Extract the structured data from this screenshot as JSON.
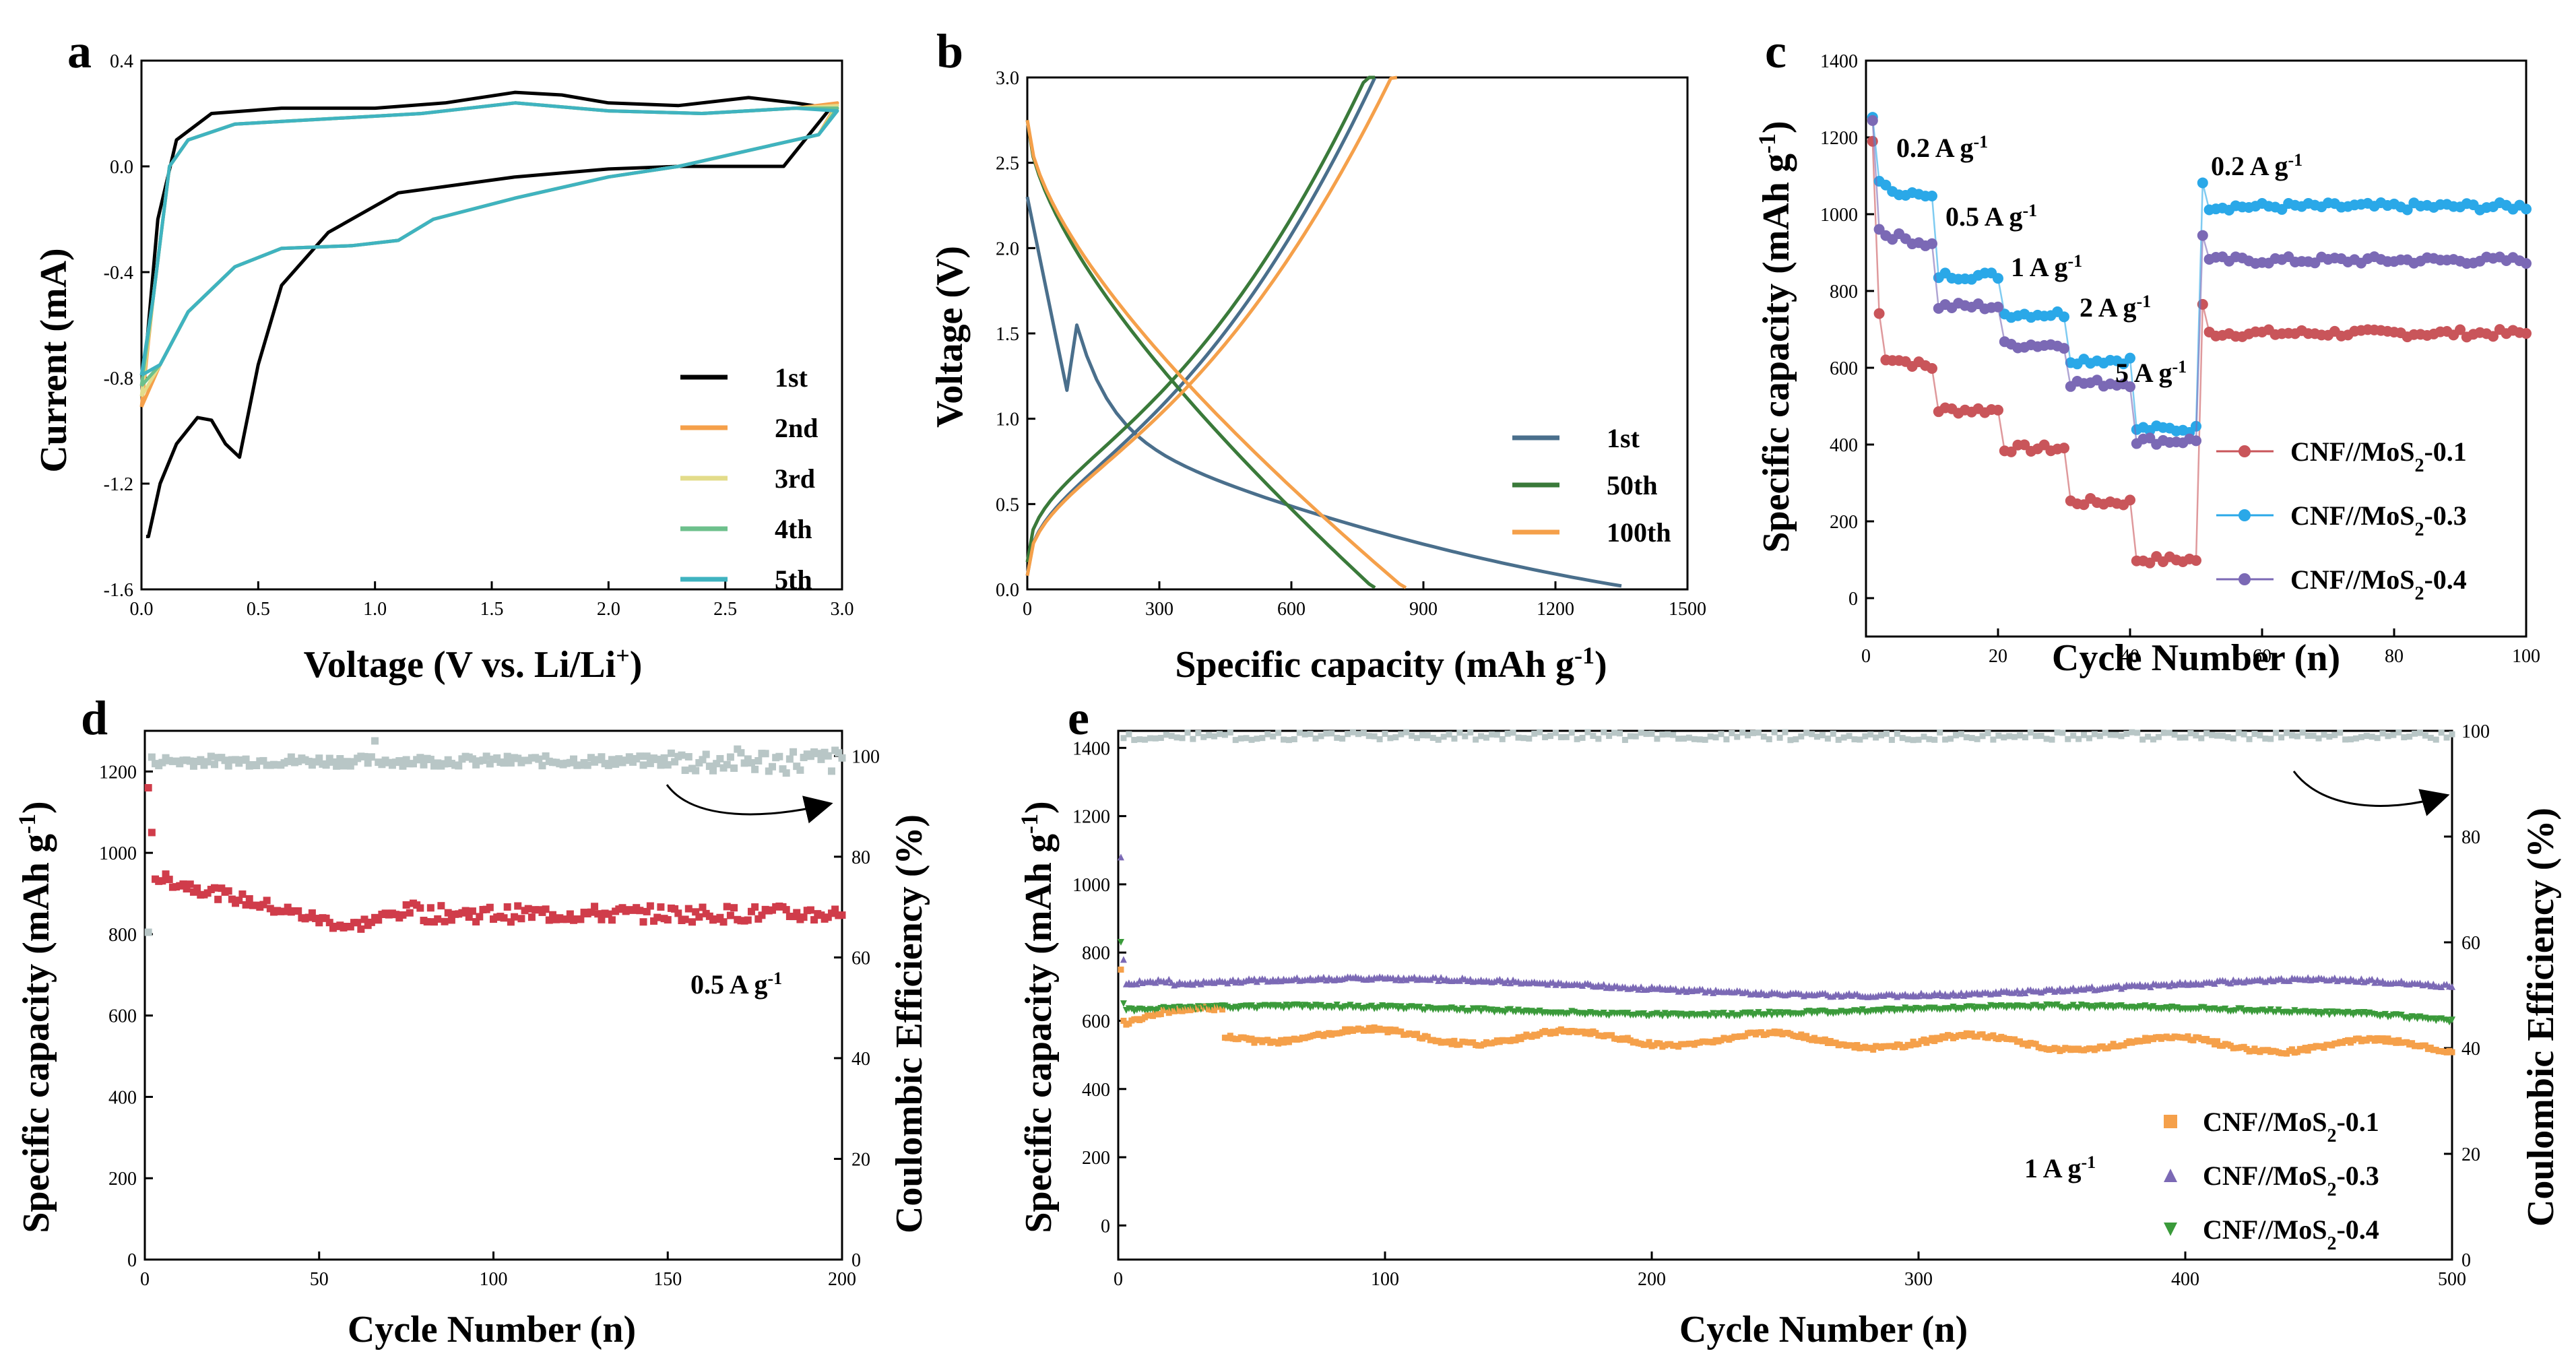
{
  "chart_data": [
    {
      "panel": "a",
      "type": "line",
      "xlabel": "Voltage (V vs. Li/Li+)",
      "ylabel": "Current (mA)",
      "xlim": [
        0,
        3.0
      ],
      "ylim": [
        -1.6,
        0.4
      ],
      "xticks": [
        "0.0",
        "0.5",
        "1.0",
        "1.5",
        "2.0",
        "2.5",
        "3.0"
      ],
      "yticks": [
        "-1.6",
        "-1.2",
        "-0.8",
        "-0.4",
        "0.0",
        "0.4"
      ],
      "series": [
        {
          "name": "1st",
          "color": "#000000"
        },
        {
          "name": "2nd",
          "color": "#f5a04a"
        },
        {
          "name": "3rd",
          "color": "#e3dc8a"
        },
        {
          "name": "4th",
          "color": "#6dc08c"
        },
        {
          "name": "5th",
          "color": "#3fb3c0"
        }
      ]
    },
    {
      "panel": "b",
      "type": "line",
      "xlabel": "Specific capacity (mAh g-1)",
      "ylabel": "Voltage (V)",
      "xlim": [
        0,
        1500
      ],
      "ylim": [
        0,
        3.0
      ],
      "xticks": [
        "0",
        "300",
        "600",
        "900",
        "1200",
        "1500"
      ],
      "yticks": [
        "0.0",
        "0.5",
        "1.0",
        "1.5",
        "2.0",
        "2.5",
        "3.0"
      ],
      "series": [
        {
          "name": "1st",
          "color": "#4a6f8c",
          "discharge_capacity": 1350,
          "charge_capacity": 790
        },
        {
          "name": "50th",
          "color": "#3a7a3a",
          "discharge_capacity": 790,
          "charge_capacity": 790
        },
        {
          "name": "100th",
          "color": "#f5a04a",
          "discharge_capacity": 860,
          "charge_capacity": 840
        }
      ]
    },
    {
      "panel": "c",
      "type": "scatter",
      "xlabel": "Cycle Number (n)",
      "ylabel": "Specific capacity (mAh g-1)",
      "xlim": [
        0,
        100
      ],
      "ylim": [
        -100,
        1400
      ],
      "xticks": [
        "0",
        "20",
        "40",
        "60",
        "80",
        "100"
      ],
      "yticks": [
        "0",
        "200",
        "400",
        "600",
        "800",
        "1000",
        "1200",
        "1400"
      ],
      "rate_labels": [
        "0.2 A g-1",
        "0.5 A g-1",
        "1 A g-1",
        "2 A g-1",
        "5 A g-1",
        "0.2 A g-1"
      ],
      "series": [
        {
          "name": "CNF//MoS2-0.1",
          "color": "#c9555a",
          "segment_values": [
            600,
            490,
            390,
            250,
            100,
            690
          ]
        },
        {
          "name": "CNF//MoS2-0.3",
          "color": "#2aa8e8",
          "segment_values": [
            1040,
            840,
            740,
            620,
            440,
            1020
          ]
        },
        {
          "name": "CNF//MoS2-0.4",
          "color": "#7b69b5",
          "segment_values": [
            920,
            760,
            660,
            560,
            410,
            880
          ]
        }
      ]
    },
    {
      "panel": "d",
      "type": "scatter",
      "xlabel": "Cycle Number (n)",
      "ylabel": "Specific capacity (mAh g-1)",
      "y2label": "Coulombic Efficiency (%)",
      "xlim": [
        0,
        200
      ],
      "ylim": [
        0,
        1300
      ],
      "y2lim": [
        0,
        105
      ],
      "xticks": [
        "0",
        "50",
        "100",
        "150",
        "200"
      ],
      "yticks": [
        "0",
        "200",
        "400",
        "600",
        "800",
        "1000",
        "1200"
      ],
      "y2ticks": [
        "0",
        "20",
        "40",
        "60",
        "80",
        "100"
      ],
      "annotation": "0.5 A g-1",
      "series": [
        {
          "name": "Specific capacity",
          "color": "#d03c4a",
          "first_value": 1160,
          "stable_value": 850
        },
        {
          "name": "Coulombic Efficiency",
          "color": "#b8c6c6",
          "first_value": 65,
          "stable_value": 99
        }
      ]
    },
    {
      "panel": "e",
      "type": "scatter",
      "xlabel": "Cycle Number (n)",
      "ylabel": "Specific capacity (mAh g-1)",
      "y2label": "Coulombic Efficiency (%)",
      "xlim": [
        0,
        500
      ],
      "ylim": [
        -100,
        1450
      ],
      "y2lim": [
        0,
        100
      ],
      "xticks": [
        "0",
        "100",
        "200",
        "300",
        "400",
        "500"
      ],
      "yticks": [
        "0",
        "200",
        "400",
        "600",
        "800",
        "1000",
        "1200",
        "1400"
      ],
      "y2ticks": [
        "0",
        "20",
        "40",
        "60",
        "80",
        "100"
      ],
      "annotation": "1 A g-1",
      "series": [
        {
          "name": "CNF//MoS2-0.1",
          "color": "#f5a04a",
          "marker": "square",
          "stable_value": 530
        },
        {
          "name": "CNF//MoS2-0.3",
          "color": "#7b69b5",
          "marker": "triangle-up",
          "stable_value": 720
        },
        {
          "name": "CNF//MoS2-0.4",
          "color": "#3a9a3a",
          "marker": "triangle-down",
          "stable_value": 630
        },
        {
          "name": "Coulombic Efficiency",
          "color": "#b8c6c6",
          "marker": "square",
          "stable_value": 99
        }
      ]
    }
  ],
  "labels": {
    "a": "a",
    "b": "b",
    "c": "c",
    "d": "d",
    "e": "e",
    "ax_a_x": "Voltage (V vs. Li/Li",
    "ax_a_y": "Current (mA)",
    "ax_b_x": "Specific capacity (mAh g",
    "ax_b_y": "Voltage (V)",
    "ax_c_x": "Cycle Number (n)",
    "ax_c_y": "Specific capacity (mAh g",
    "ax_d_x": "Cycle Number (n)",
    "ax_d_y": "Specific capacity (mAh g",
    "ax_d_y2": "Coulombic Efficiency (%)",
    "ax_e_x": "Cycle Number (n)",
    "ax_e_y": "Specific capacity (mAh g",
    "ax_e_y2": "Coulombic Efficiency (%)",
    "sup_plus": "+",
    "sup_m1": "-1",
    "close_paren": ")",
    "leg_prefix": "CNF//MoS",
    "leg_sub": "2",
    "rate_02": "0.2 A g",
    "rate_05": "0.5 A g",
    "rate_1": "1 A g",
    "rate_2": "2 A g",
    "rate_5": "5 A g",
    "rate_02b": "0.2 A g",
    "ann_d": "0.5 A g",
    "ann_e": "1 A g"
  }
}
